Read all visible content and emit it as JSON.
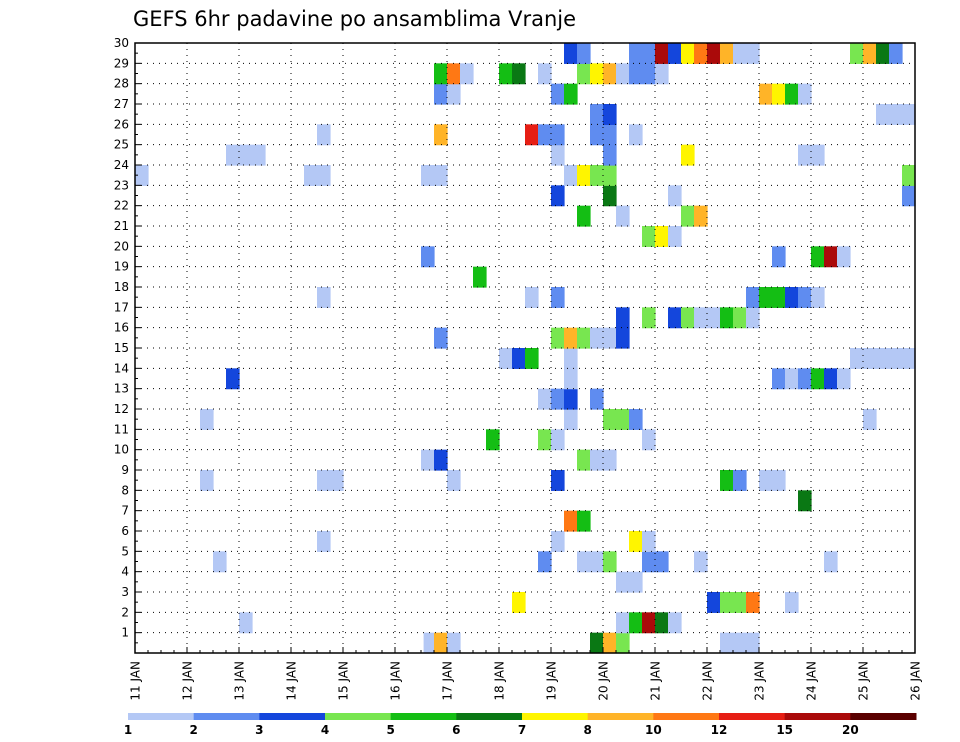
{
  "chart_data": {
    "type": "heatmap",
    "title": "GEFS 6hr padavine po ansamblima Vranje",
    "y_range": [
      0,
      30
    ],
    "y_ticks": [
      "1",
      "2",
      "3",
      "4",
      "5",
      "6",
      "7",
      "8",
      "9",
      "10",
      "11",
      "12",
      "13",
      "14",
      "15",
      "16",
      "17",
      "18",
      "19",
      "20",
      "21",
      "22",
      "23",
      "24",
      "25",
      "26",
      "27",
      "28",
      "29",
      "30"
    ],
    "x_range_days": [
      11,
      26
    ],
    "x_ticks": [
      "11 JAN",
      "12 JAN",
      "13 JAN",
      "14 JAN",
      "15 JAN",
      "16 JAN",
      "17 JAN",
      "18 JAN",
      "19 JAN",
      "20 JAN",
      "21 JAN",
      "22 JAN",
      "23 JAN",
      "24 JAN",
      "25 JAN",
      "26 JAN"
    ],
    "grid": true,
    "colorbar": {
      "bins": [
        "#b4c8f5",
        "#5f8cf0",
        "#1446dc",
        "#78e650",
        "#14be14",
        "#0a7814",
        "#fff500",
        "#ffb428",
        "#ff7814",
        "#e61e14",
        "#aa0a0a",
        "#5a0000"
      ],
      "labels": [
        "1",
        "2",
        "3",
        "4",
        "5",
        "6",
        "7",
        "8",
        "10",
        "12",
        "15",
        "20"
      ]
    },
    "cells": [
      {
        "y": 0,
        "t0": 16.55,
        "t1": 16.75,
        "c": 0
      },
      {
        "y": 0,
        "t0": 16.75,
        "t1": 17.0,
        "c": 7
      },
      {
        "y": 0,
        "t0": 17.0,
        "t1": 17.25,
        "c": 0
      },
      {
        "y": 0,
        "t0": 19.75,
        "t1": 20.0,
        "c": 5
      },
      {
        "y": 0,
        "t0": 20.0,
        "t1": 20.25,
        "c": 7
      },
      {
        "y": 0,
        "t0": 20.25,
        "t1": 20.5,
        "c": 3
      },
      {
        "y": 0,
        "t0": 22.25,
        "t1": 23.0,
        "c": 0
      },
      {
        "y": 1,
        "t0": 13.0,
        "t1": 13.25,
        "c": 0
      },
      {
        "y": 1,
        "t0": 20.25,
        "t1": 20.5,
        "c": 0
      },
      {
        "y": 1,
        "t0": 20.5,
        "t1": 20.75,
        "c": 4
      },
      {
        "y": 1,
        "t0": 20.75,
        "t1": 21.0,
        "c": 10
      },
      {
        "y": 1,
        "t0": 21.0,
        "t1": 21.25,
        "c": 5
      },
      {
        "y": 1,
        "t0": 21.25,
        "t1": 21.5,
        "c": 0
      },
      {
        "y": 2,
        "t0": 18.25,
        "t1": 18.5,
        "c": 6
      },
      {
        "y": 2,
        "t0": 22.0,
        "t1": 22.25,
        "c": 2
      },
      {
        "y": 2,
        "t0": 22.25,
        "t1": 22.75,
        "c": 3
      },
      {
        "y": 2,
        "t0": 22.75,
        "t1": 23.0,
        "c": 8
      },
      {
        "y": 2,
        "t0": 23.5,
        "t1": 23.75,
        "c": 0
      },
      {
        "y": 3,
        "t0": 20.25,
        "t1": 20.75,
        "c": 0
      },
      {
        "y": 4,
        "t0": 12.5,
        "t1": 12.75,
        "c": 0
      },
      {
        "y": 4,
        "t0": 18.75,
        "t1": 19.0,
        "c": 1
      },
      {
        "y": 4,
        "t0": 19.5,
        "t1": 20.0,
        "c": 0
      },
      {
        "y": 4,
        "t0": 20.0,
        "t1": 20.25,
        "c": 3
      },
      {
        "y": 4,
        "t0": 20.75,
        "t1": 21.25,
        "c": 1
      },
      {
        "y": 4,
        "t0": 21.75,
        "t1": 22.0,
        "c": 0
      },
      {
        "y": 4,
        "t0": 24.25,
        "t1": 24.5,
        "c": 0
      },
      {
        "y": 5,
        "t0": 14.5,
        "t1": 14.75,
        "c": 0
      },
      {
        "y": 5,
        "t0": 19.0,
        "t1": 19.25,
        "c": 0
      },
      {
        "y": 5,
        "t0": 20.5,
        "t1": 20.75,
        "c": 6
      },
      {
        "y": 5,
        "t0": 20.75,
        "t1": 21.0,
        "c": 0
      },
      {
        "y": 6,
        "t0": 19.25,
        "t1": 19.5,
        "c": 8
      },
      {
        "y": 6,
        "t0": 19.5,
        "t1": 19.75,
        "c": 4
      },
      {
        "y": 7,
        "t0": 23.75,
        "t1": 24.0,
        "c": 5
      },
      {
        "y": 8,
        "t0": 12.25,
        "t1": 12.5,
        "c": 0
      },
      {
        "y": 8,
        "t0": 14.5,
        "t1": 15.0,
        "c": 0
      },
      {
        "y": 8,
        "t0": 17.0,
        "t1": 17.25,
        "c": 0
      },
      {
        "y": 8,
        "t0": 19.0,
        "t1": 19.25,
        "c": 2
      },
      {
        "y": 8,
        "t0": 22.25,
        "t1": 22.5,
        "c": 4
      },
      {
        "y": 8,
        "t0": 22.5,
        "t1": 22.75,
        "c": 1
      },
      {
        "y": 8,
        "t0": 23.0,
        "t1": 23.5,
        "c": 0
      },
      {
        "y": 9,
        "t0": 16.5,
        "t1": 16.75,
        "c": 0
      },
      {
        "y": 9,
        "t0": 16.75,
        "t1": 17.0,
        "c": 2
      },
      {
        "y": 9,
        "t0": 19.5,
        "t1": 19.75,
        "c": 3
      },
      {
        "y": 9,
        "t0": 19.75,
        "t1": 20.25,
        "c": 0
      },
      {
        "y": 10,
        "t0": 17.75,
        "t1": 18.0,
        "c": 4
      },
      {
        "y": 10,
        "t0": 18.75,
        "t1": 19.0,
        "c": 3
      },
      {
        "y": 10,
        "t0": 19.0,
        "t1": 19.25,
        "c": 0
      },
      {
        "y": 10,
        "t0": 20.75,
        "t1": 21.0,
        "c": 0
      },
      {
        "y": 11,
        "t0": 12.25,
        "t1": 12.5,
        "c": 0
      },
      {
        "y": 11,
        "t0": 19.25,
        "t1": 19.5,
        "c": 0
      },
      {
        "y": 11,
        "t0": 20.0,
        "t1": 20.5,
        "c": 3
      },
      {
        "y": 11,
        "t0": 20.5,
        "t1": 20.75,
        "c": 1
      },
      {
        "y": 11,
        "t0": 25.0,
        "t1": 25.25,
        "c": 0
      },
      {
        "y": 12,
        "t0": 18.75,
        "t1": 19.0,
        "c": 0
      },
      {
        "y": 12,
        "t0": 19.0,
        "t1": 19.25,
        "c": 1
      },
      {
        "y": 12,
        "t0": 19.25,
        "t1": 19.5,
        "c": 2
      },
      {
        "y": 12,
        "t0": 19.75,
        "t1": 20.0,
        "c": 1
      },
      {
        "y": 13,
        "t0": 12.75,
        "t1": 13.0,
        "c": 2
      },
      {
        "y": 13,
        "t0": 19.25,
        "t1": 19.5,
        "c": 0
      },
      {
        "y": 13,
        "t0": 23.25,
        "t1": 23.5,
        "c": 1
      },
      {
        "y": 13,
        "t0": 23.5,
        "t1": 23.75,
        "c": 0
      },
      {
        "y": 13,
        "t0": 23.75,
        "t1": 24.0,
        "c": 1
      },
      {
        "y": 13,
        "t0": 24.0,
        "t1": 24.25,
        "c": 4
      },
      {
        "y": 13,
        "t0": 24.25,
        "t1": 24.5,
        "c": 2
      },
      {
        "y": 13,
        "t0": 24.5,
        "t1": 24.75,
        "c": 0
      },
      {
        "y": 14,
        "t0": 18.0,
        "t1": 18.25,
        "c": 0
      },
      {
        "y": 14,
        "t0": 18.25,
        "t1": 18.5,
        "c": 2
      },
      {
        "y": 14,
        "t0": 18.5,
        "t1": 18.75,
        "c": 4
      },
      {
        "y": 14,
        "t0": 19.25,
        "t1": 19.5,
        "c": 0
      },
      {
        "y": 14,
        "t0": 24.75,
        "t1": 26.0,
        "c": 0
      },
      {
        "y": 15,
        "t0": 16.75,
        "t1": 17.0,
        "c": 1
      },
      {
        "y": 15,
        "t0": 19.0,
        "t1": 19.25,
        "c": 3
      },
      {
        "y": 15,
        "t0": 19.25,
        "t1": 19.5,
        "c": 7
      },
      {
        "y": 15,
        "t0": 19.5,
        "t1": 19.75,
        "c": 3
      },
      {
        "y": 15,
        "t0": 19.75,
        "t1": 20.25,
        "c": 0
      },
      {
        "y": 15,
        "t0": 20.25,
        "t1": 20.5,
        "c": 2
      },
      {
        "y": 16,
        "t0": 20.25,
        "t1": 20.5,
        "c": 2
      },
      {
        "y": 16,
        "t0": 20.75,
        "t1": 21.0,
        "c": 3
      },
      {
        "y": 16,
        "t0": 21.25,
        "t1": 21.5,
        "c": 2
      },
      {
        "y": 16,
        "t0": 21.5,
        "t1": 21.75,
        "c": 3
      },
      {
        "y": 16,
        "t0": 21.75,
        "t1": 22.25,
        "c": 0
      },
      {
        "y": 16,
        "t0": 22.25,
        "t1": 22.5,
        "c": 4
      },
      {
        "y": 16,
        "t0": 22.5,
        "t1": 22.75,
        "c": 3
      },
      {
        "y": 16,
        "t0": 22.75,
        "t1": 23.0,
        "c": 0
      },
      {
        "y": 17,
        "t0": 14.5,
        "t1": 14.75,
        "c": 0
      },
      {
        "y": 17,
        "t0": 18.5,
        "t1": 18.75,
        "c": 0
      },
      {
        "y": 17,
        "t0": 19.0,
        "t1": 19.25,
        "c": 1
      },
      {
        "y": 17,
        "t0": 22.75,
        "t1": 23.0,
        "c": 1
      },
      {
        "y": 17,
        "t0": 23.0,
        "t1": 23.5,
        "c": 4
      },
      {
        "y": 17,
        "t0": 23.5,
        "t1": 23.75,
        "c": 2
      },
      {
        "y": 17,
        "t0": 23.75,
        "t1": 24.0,
        "c": 1
      },
      {
        "y": 17,
        "t0": 24.0,
        "t1": 24.25,
        "c": 0
      },
      {
        "y": 18,
        "t0": 17.5,
        "t1": 17.75,
        "c": 4
      },
      {
        "y": 19,
        "t0": 16.5,
        "t1": 16.75,
        "c": 1
      },
      {
        "y": 19,
        "t0": 23.25,
        "t1": 23.5,
        "c": 1
      },
      {
        "y": 19,
        "t0": 24.0,
        "t1": 24.25,
        "c": 4
      },
      {
        "y": 19,
        "t0": 24.25,
        "t1": 24.5,
        "c": 10
      },
      {
        "y": 19,
        "t0": 24.5,
        "t1": 24.75,
        "c": 0
      },
      {
        "y": 20,
        "t0": 20.75,
        "t1": 21.0,
        "c": 3
      },
      {
        "y": 20,
        "t0": 21.0,
        "t1": 21.25,
        "c": 6
      },
      {
        "y": 20,
        "t0": 21.25,
        "t1": 21.5,
        "c": 0
      },
      {
        "y": 21,
        "t0": 19.5,
        "t1": 19.75,
        "c": 4
      },
      {
        "y": 21,
        "t0": 20.25,
        "t1": 20.5,
        "c": 0
      },
      {
        "y": 21,
        "t0": 21.5,
        "t1": 21.75,
        "c": 3
      },
      {
        "y": 21,
        "t0": 21.75,
        "t1": 22.0,
        "c": 7
      },
      {
        "y": 22,
        "t0": 19.0,
        "t1": 19.25,
        "c": 2
      },
      {
        "y": 22,
        "t0": 20.0,
        "t1": 20.25,
        "c": 5
      },
      {
        "y": 22,
        "t0": 21.25,
        "t1": 21.5,
        "c": 0
      },
      {
        "y": 22,
        "t0": 25.75,
        "t1": 26.0,
        "c": 1
      },
      {
        "y": 23,
        "t0": 11.0,
        "t1": 11.25,
        "c": 0
      },
      {
        "y": 23,
        "t0": 14.25,
        "t1": 14.75,
        "c": 0
      },
      {
        "y": 23,
        "t0": 16.5,
        "t1": 17.0,
        "c": 0
      },
      {
        "y": 23,
        "t0": 19.25,
        "t1": 19.5,
        "c": 0
      },
      {
        "y": 23,
        "t0": 19.5,
        "t1": 19.75,
        "c": 6
      },
      {
        "y": 23,
        "t0": 19.75,
        "t1": 20.25,
        "c": 3
      },
      {
        "y": 23,
        "t0": 25.75,
        "t1": 26.0,
        "c": 3
      },
      {
        "y": 24,
        "t0": 12.75,
        "t1": 13.5,
        "c": 0
      },
      {
        "y": 24,
        "t0": 19.0,
        "t1": 19.25,
        "c": 0
      },
      {
        "y": 24,
        "t0": 20.0,
        "t1": 20.25,
        "c": 1
      },
      {
        "y": 24,
        "t0": 21.5,
        "t1": 21.75,
        "c": 6
      },
      {
        "y": 24,
        "t0": 23.75,
        "t1": 24.25,
        "c": 0
      },
      {
        "y": 25,
        "t0": 14.5,
        "t1": 14.75,
        "c": 0
      },
      {
        "y": 25,
        "t0": 16.75,
        "t1": 17.0,
        "c": 7
      },
      {
        "y": 25,
        "t0": 18.5,
        "t1": 18.75,
        "c": 9
      },
      {
        "y": 25,
        "t0": 18.75,
        "t1": 19.25,
        "c": 1
      },
      {
        "y": 25,
        "t0": 19.75,
        "t1": 20.25,
        "c": 1
      },
      {
        "y": 25,
        "t0": 20.5,
        "t1": 20.75,
        "c": 0
      },
      {
        "y": 26,
        "t0": 19.75,
        "t1": 20.0,
        "c": 1
      },
      {
        "y": 26,
        "t0": 20.0,
        "t1": 20.25,
        "c": 2
      },
      {
        "y": 26,
        "t0": 25.25,
        "t1": 26.0,
        "c": 0
      },
      {
        "y": 27,
        "t0": 16.75,
        "t1": 17.0,
        "c": 1
      },
      {
        "y": 27,
        "t0": 17.0,
        "t1": 17.25,
        "c": 0
      },
      {
        "y": 27,
        "t0": 19.0,
        "t1": 19.25,
        "c": 1
      },
      {
        "y": 27,
        "t0": 19.25,
        "t1": 19.5,
        "c": 4
      },
      {
        "y": 27,
        "t0": 23.0,
        "t1": 23.25,
        "c": 7
      },
      {
        "y": 27,
        "t0": 23.25,
        "t1": 23.5,
        "c": 6
      },
      {
        "y": 27,
        "t0": 23.5,
        "t1": 23.75,
        "c": 4
      },
      {
        "y": 27,
        "t0": 23.75,
        "t1": 24.0,
        "c": 0
      },
      {
        "y": 28,
        "t0": 16.75,
        "t1": 17.0,
        "c": 4
      },
      {
        "y": 28,
        "t0": 17.0,
        "t1": 17.25,
        "c": 8
      },
      {
        "y": 28,
        "t0": 17.25,
        "t1": 17.5,
        "c": 0
      },
      {
        "y": 28,
        "t0": 18.0,
        "t1": 18.25,
        "c": 4
      },
      {
        "y": 28,
        "t0": 18.25,
        "t1": 18.5,
        "c": 5
      },
      {
        "y": 28,
        "t0": 18.75,
        "t1": 19.0,
        "c": 0
      },
      {
        "y": 28,
        "t0": 19.5,
        "t1": 19.75,
        "c": 3
      },
      {
        "y": 28,
        "t0": 19.75,
        "t1": 20.0,
        "c": 6
      },
      {
        "y": 28,
        "t0": 20.0,
        "t1": 20.25,
        "c": 7
      },
      {
        "y": 28,
        "t0": 20.25,
        "t1": 20.5,
        "c": 0
      },
      {
        "y": 28,
        "t0": 20.5,
        "t1": 21.0,
        "c": 1
      },
      {
        "y": 28,
        "t0": 21.0,
        "t1": 21.25,
        "c": 0
      },
      {
        "y": 29,
        "t0": 19.25,
        "t1": 19.5,
        "c": 2
      },
      {
        "y": 29,
        "t0": 19.5,
        "t1": 19.75,
        "c": 1
      },
      {
        "y": 29,
        "t0": 20.5,
        "t1": 21.0,
        "c": 1
      },
      {
        "y": 29,
        "t0": 21.0,
        "t1": 21.25,
        "c": 10
      },
      {
        "y": 29,
        "t0": 21.25,
        "t1": 21.5,
        "c": 2
      },
      {
        "y": 29,
        "t0": 21.5,
        "t1": 21.75,
        "c": 6
      },
      {
        "y": 29,
        "t0": 21.75,
        "t1": 22.0,
        "c": 8
      },
      {
        "y": 29,
        "t0": 22.0,
        "t1": 22.25,
        "c": 10
      },
      {
        "y": 29,
        "t0": 22.25,
        "t1": 22.5,
        "c": 7
      },
      {
        "y": 29,
        "t0": 22.5,
        "t1": 23.0,
        "c": 0
      },
      {
        "y": 29,
        "t0": 24.75,
        "t1": 25.0,
        "c": 3
      },
      {
        "y": 29,
        "t0": 25.0,
        "t1": 25.25,
        "c": 7
      },
      {
        "y": 29,
        "t0": 25.25,
        "t1": 25.5,
        "c": 5
      },
      {
        "y": 29,
        "t0": 25.5,
        "t1": 25.75,
        "c": 1
      }
    ]
  }
}
